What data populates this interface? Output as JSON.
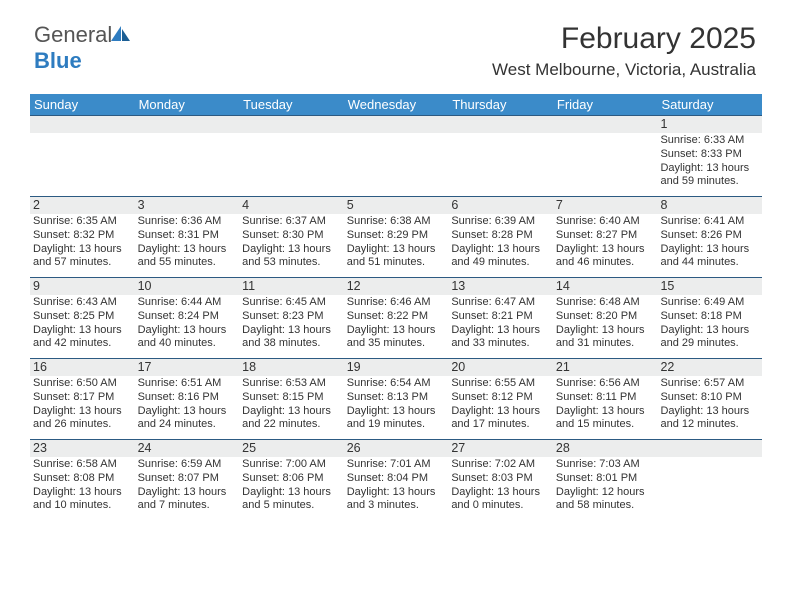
{
  "logo": {
    "word1": "General",
    "word2": "Blue",
    "color_gray": "#555555",
    "color_blue": "#2e7cc0"
  },
  "title": "February 2025",
  "location": "West Melbourne, Victoria, Australia",
  "header_bg": "#3b8bc9",
  "header_fg": "#ffffff",
  "row_border": "#2c5a82",
  "num_bar_bg": "#eceded",
  "day_names": [
    "Sunday",
    "Monday",
    "Tuesday",
    "Wednesday",
    "Thursday",
    "Friday",
    "Saturday"
  ],
  "weeks": [
    [
      {
        "num": "",
        "sunrise": "",
        "sunset": "",
        "daylight": ""
      },
      {
        "num": "",
        "sunrise": "",
        "sunset": "",
        "daylight": ""
      },
      {
        "num": "",
        "sunrise": "",
        "sunset": "",
        "daylight": ""
      },
      {
        "num": "",
        "sunrise": "",
        "sunset": "",
        "daylight": ""
      },
      {
        "num": "",
        "sunrise": "",
        "sunset": "",
        "daylight": ""
      },
      {
        "num": "",
        "sunrise": "",
        "sunset": "",
        "daylight": ""
      },
      {
        "num": "1",
        "sunrise": "Sunrise: 6:33 AM",
        "sunset": "Sunset: 8:33 PM",
        "daylight": "Daylight: 13 hours and 59 minutes."
      }
    ],
    [
      {
        "num": "2",
        "sunrise": "Sunrise: 6:35 AM",
        "sunset": "Sunset: 8:32 PM",
        "daylight": "Daylight: 13 hours and 57 minutes."
      },
      {
        "num": "3",
        "sunrise": "Sunrise: 6:36 AM",
        "sunset": "Sunset: 8:31 PM",
        "daylight": "Daylight: 13 hours and 55 minutes."
      },
      {
        "num": "4",
        "sunrise": "Sunrise: 6:37 AM",
        "sunset": "Sunset: 8:30 PM",
        "daylight": "Daylight: 13 hours and 53 minutes."
      },
      {
        "num": "5",
        "sunrise": "Sunrise: 6:38 AM",
        "sunset": "Sunset: 8:29 PM",
        "daylight": "Daylight: 13 hours and 51 minutes."
      },
      {
        "num": "6",
        "sunrise": "Sunrise: 6:39 AM",
        "sunset": "Sunset: 8:28 PM",
        "daylight": "Daylight: 13 hours and 49 minutes."
      },
      {
        "num": "7",
        "sunrise": "Sunrise: 6:40 AM",
        "sunset": "Sunset: 8:27 PM",
        "daylight": "Daylight: 13 hours and 46 minutes."
      },
      {
        "num": "8",
        "sunrise": "Sunrise: 6:41 AM",
        "sunset": "Sunset: 8:26 PM",
        "daylight": "Daylight: 13 hours and 44 minutes."
      }
    ],
    [
      {
        "num": "9",
        "sunrise": "Sunrise: 6:43 AM",
        "sunset": "Sunset: 8:25 PM",
        "daylight": "Daylight: 13 hours and 42 minutes."
      },
      {
        "num": "10",
        "sunrise": "Sunrise: 6:44 AM",
        "sunset": "Sunset: 8:24 PM",
        "daylight": "Daylight: 13 hours and 40 minutes."
      },
      {
        "num": "11",
        "sunrise": "Sunrise: 6:45 AM",
        "sunset": "Sunset: 8:23 PM",
        "daylight": "Daylight: 13 hours and 38 minutes."
      },
      {
        "num": "12",
        "sunrise": "Sunrise: 6:46 AM",
        "sunset": "Sunset: 8:22 PM",
        "daylight": "Daylight: 13 hours and 35 minutes."
      },
      {
        "num": "13",
        "sunrise": "Sunrise: 6:47 AM",
        "sunset": "Sunset: 8:21 PM",
        "daylight": "Daylight: 13 hours and 33 minutes."
      },
      {
        "num": "14",
        "sunrise": "Sunrise: 6:48 AM",
        "sunset": "Sunset: 8:20 PM",
        "daylight": "Daylight: 13 hours and 31 minutes."
      },
      {
        "num": "15",
        "sunrise": "Sunrise: 6:49 AM",
        "sunset": "Sunset: 8:18 PM",
        "daylight": "Daylight: 13 hours and 29 minutes."
      }
    ],
    [
      {
        "num": "16",
        "sunrise": "Sunrise: 6:50 AM",
        "sunset": "Sunset: 8:17 PM",
        "daylight": "Daylight: 13 hours and 26 minutes."
      },
      {
        "num": "17",
        "sunrise": "Sunrise: 6:51 AM",
        "sunset": "Sunset: 8:16 PM",
        "daylight": "Daylight: 13 hours and 24 minutes."
      },
      {
        "num": "18",
        "sunrise": "Sunrise: 6:53 AM",
        "sunset": "Sunset: 8:15 PM",
        "daylight": "Daylight: 13 hours and 22 minutes."
      },
      {
        "num": "19",
        "sunrise": "Sunrise: 6:54 AM",
        "sunset": "Sunset: 8:13 PM",
        "daylight": "Daylight: 13 hours and 19 minutes."
      },
      {
        "num": "20",
        "sunrise": "Sunrise: 6:55 AM",
        "sunset": "Sunset: 8:12 PM",
        "daylight": "Daylight: 13 hours and 17 minutes."
      },
      {
        "num": "21",
        "sunrise": "Sunrise: 6:56 AM",
        "sunset": "Sunset: 8:11 PM",
        "daylight": "Daylight: 13 hours and 15 minutes."
      },
      {
        "num": "22",
        "sunrise": "Sunrise: 6:57 AM",
        "sunset": "Sunset: 8:10 PM",
        "daylight": "Daylight: 13 hours and 12 minutes."
      }
    ],
    [
      {
        "num": "23",
        "sunrise": "Sunrise: 6:58 AM",
        "sunset": "Sunset: 8:08 PM",
        "daylight": "Daylight: 13 hours and 10 minutes."
      },
      {
        "num": "24",
        "sunrise": "Sunrise: 6:59 AM",
        "sunset": "Sunset: 8:07 PM",
        "daylight": "Daylight: 13 hours and 7 minutes."
      },
      {
        "num": "25",
        "sunrise": "Sunrise: 7:00 AM",
        "sunset": "Sunset: 8:06 PM",
        "daylight": "Daylight: 13 hours and 5 minutes."
      },
      {
        "num": "26",
        "sunrise": "Sunrise: 7:01 AM",
        "sunset": "Sunset: 8:04 PM",
        "daylight": "Daylight: 13 hours and 3 minutes."
      },
      {
        "num": "27",
        "sunrise": "Sunrise: 7:02 AM",
        "sunset": "Sunset: 8:03 PM",
        "daylight": "Daylight: 13 hours and 0 minutes."
      },
      {
        "num": "28",
        "sunrise": "Sunrise: 7:03 AM",
        "sunset": "Sunset: 8:01 PM",
        "daylight": "Daylight: 12 hours and 58 minutes."
      },
      {
        "num": "",
        "sunrise": "",
        "sunset": "",
        "daylight": ""
      }
    ]
  ]
}
